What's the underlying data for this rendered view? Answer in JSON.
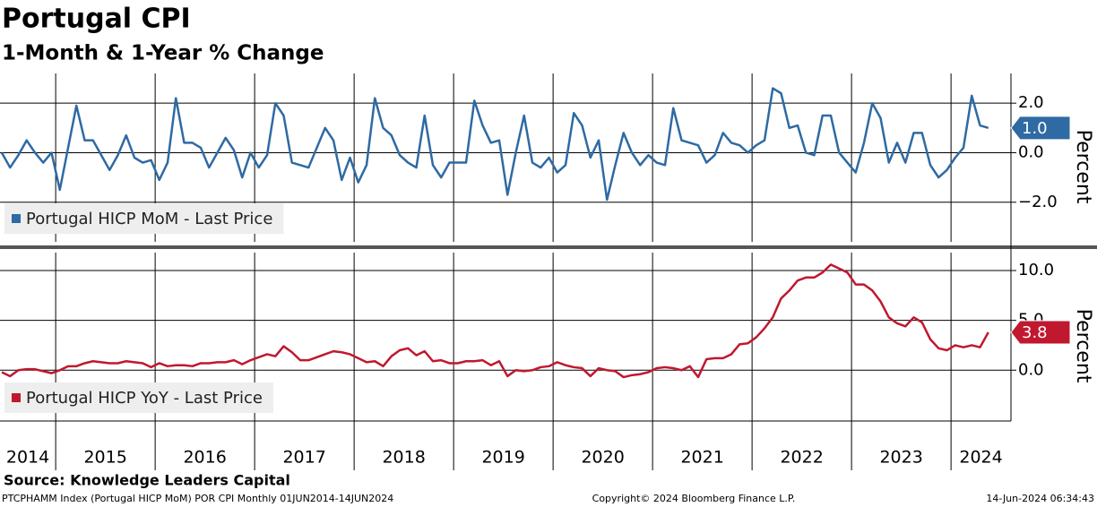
{
  "title": "Portugal CPI",
  "subtitle": "1-Month & 1-Year % Change",
  "source": "Source:  Knowledge Leaders Capital",
  "footer": [
    "PTCPHAMM Index (Portugal HICP MoM) POR CPI  Monthly 01JUN2014-14JUN2024",
    "Copyright© 2024 Bloomberg Finance L.P.",
    "14-Jun-2024 06:34:43"
  ],
  "chart_data": [
    {
      "type": "line",
      "y_label": "Percent",
      "legend": "lower left",
      "grid": true,
      "ylim": [
        -3.6,
        3.2
      ],
      "yticks": [
        {
          "value": -2,
          "label": "−2.0"
        },
        {
          "value": 0,
          "label": "0.0"
        },
        {
          "value": 2,
          "label": "2.0"
        }
      ],
      "series": [
        {
          "name": "Portugal HICP MoM - Last Price",
          "color": "#2e6aa3",
          "last_label": "1.0",
          "values": [
            0.0,
            -0.6,
            -0.1,
            0.5,
            0.0,
            -0.4,
            0.0,
            -1.5,
            0.2,
            1.9,
            0.5,
            0.5,
            -0.1,
            -0.7,
            -0.1,
            0.7,
            -0.2,
            -0.4,
            -0.3,
            -1.1,
            -0.4,
            2.2,
            0.4,
            0.4,
            0.2,
            -0.6,
            0.0,
            0.6,
            0.1,
            -1.0,
            0.0,
            -0.6,
            -0.1,
            2.0,
            1.5,
            -0.4,
            -0.5,
            -0.6,
            0.2,
            1.0,
            0.5,
            -1.1,
            -0.2,
            -1.2,
            -0.5,
            2.2,
            1.0,
            0.7,
            -0.1,
            -0.4,
            -0.6,
            1.5,
            -0.5,
            -1.0,
            -0.4,
            -0.4,
            -0.4,
            2.1,
            1.1,
            0.4,
            0.5,
            -1.7,
            0.0,
            1.5,
            -0.4,
            -0.6,
            -0.2,
            -0.8,
            -0.5,
            1.6,
            1.1,
            -0.2,
            0.5,
            -1.9,
            -0.5,
            0.8,
            0.0,
            -0.5,
            -0.1,
            -0.4,
            -0.5,
            1.8,
            0.5,
            0.4,
            0.3,
            -0.4,
            -0.1,
            0.8,
            0.4,
            0.3,
            0.0,
            0.3,
            0.5,
            2.6,
            2.4,
            1.0,
            1.1,
            0.0,
            -0.1,
            1.5,
            1.5,
            0.0,
            -0.4,
            -0.8,
            0.4,
            2.0,
            1.4,
            -0.4,
            0.4,
            -0.4,
            0.8,
            0.8,
            -0.5,
            -1.0,
            -0.7,
            -0.2,
            0.2,
            2.3,
            1.1,
            1.0
          ]
        }
      ]
    },
    {
      "type": "line",
      "y_label": "Percent",
      "legend": "lower left",
      "grid": true,
      "ylim": [
        -5.1,
        11.8
      ],
      "yticks": [
        {
          "value": 0,
          "label": "0.0"
        },
        {
          "value": 5,
          "label": "5.0"
        },
        {
          "value": 10,
          "label": "10.0"
        }
      ],
      "categories": [
        "2014",
        null,
        null,
        null,
        null,
        null,
        null,
        "2015",
        null,
        null,
        null,
        null,
        null,
        null,
        null,
        null,
        null,
        null,
        null,
        "2016",
        null,
        null,
        null,
        null,
        null,
        null,
        null,
        null,
        null,
        null,
        null,
        "2017",
        null,
        null,
        null,
        null,
        null,
        null,
        null,
        null,
        null,
        null,
        null,
        "2018",
        null,
        null,
        null,
        null,
        null,
        null,
        null,
        null,
        null,
        null,
        null,
        "2019",
        null,
        null,
        null,
        null,
        null,
        null,
        null,
        null,
        null,
        null,
        null,
        "2020",
        null,
        null,
        null,
        null,
        null,
        null,
        null,
        null,
        null,
        null,
        null,
        "2021",
        null,
        null,
        null,
        null,
        null,
        null,
        null,
        null,
        null,
        null,
        null,
        "2022",
        null,
        null,
        null,
        null,
        null,
        null,
        null,
        null,
        null,
        null,
        null,
        "2023",
        null,
        null,
        null,
        null,
        null,
        null,
        null,
        null,
        null,
        null,
        null,
        "2024",
        null,
        null,
        null,
        null
      ],
      "series": [
        {
          "name": "Portugal HICP YoY - Last Price",
          "color": "#c0182f",
          "last_label": "3.8",
          "values": [
            -0.2,
            -0.6,
            0.0,
            0.1,
            0.1,
            -0.1,
            -0.3,
            0.0,
            0.4,
            0.4,
            0.7,
            0.9,
            0.8,
            0.7,
            0.7,
            0.9,
            0.8,
            0.7,
            0.3,
            0.7,
            0.4,
            0.5,
            0.5,
            0.4,
            0.7,
            0.7,
            0.8,
            0.8,
            1.0,
            0.6,
            1.0,
            1.3,
            1.6,
            1.4,
            2.4,
            1.8,
            1.0,
            1.0,
            1.3,
            1.6,
            1.9,
            1.8,
            1.6,
            1.2,
            0.8,
            0.9,
            0.4,
            1.4,
            2.0,
            2.2,
            1.5,
            1.9,
            0.9,
            1.0,
            0.7,
            0.7,
            0.9,
            0.9,
            1.0,
            0.5,
            0.9,
            -0.6,
            0.0,
            -0.1,
            0.0,
            0.3,
            0.4,
            0.8,
            0.5,
            0.3,
            0.2,
            -0.6,
            0.2,
            0.0,
            -0.1,
            -0.7,
            -0.5,
            -0.4,
            -0.2,
            0.2,
            0.3,
            0.2,
            0.0,
            0.4,
            -0.7,
            1.1,
            1.2,
            1.2,
            1.6,
            2.6,
            2.7,
            3.3,
            4.2,
            5.3,
            7.2,
            8.0,
            9.0,
            9.3,
            9.3,
            9.8,
            10.6,
            10.2,
            9.8,
            8.6,
            8.6,
            8.0,
            6.9,
            5.3,
            4.7,
            4.4,
            5.3,
            4.8,
            3.1,
            2.2,
            2.0,
            2.5,
            2.3,
            2.5,
            2.3,
            3.8
          ]
        }
      ]
    }
  ]
}
